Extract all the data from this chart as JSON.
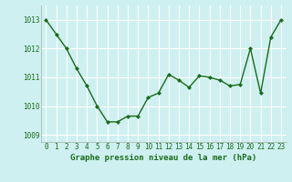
{
  "x": [
    0,
    1,
    2,
    3,
    4,
    5,
    6,
    7,
    8,
    9,
    10,
    11,
    12,
    13,
    14,
    15,
    16,
    17,
    18,
    19,
    20,
    21,
    22,
    23
  ],
  "y": [
    1013.0,
    1012.5,
    1012.0,
    1011.3,
    1010.7,
    1010.0,
    1009.45,
    1009.45,
    1009.65,
    1009.65,
    1010.3,
    1010.45,
    1011.1,
    1010.9,
    1010.65,
    1011.05,
    1011.0,
    1010.9,
    1010.7,
    1010.75,
    1012.0,
    1010.45,
    1012.4,
    1013.0
  ],
  "line_color": "#1a6b1a",
  "marker": "D",
  "marker_size": 2.0,
  "bg_color": "#cef0f0",
  "grid_color": "#ffffff",
  "axis_label_color": "#1a6b1a",
  "tick_label_color": "#1a6b1a",
  "xlabel": "Graphe pression niveau de la mer (hPa)",
  "ylim": [
    1008.75,
    1013.5
  ],
  "yticks": [
    1009,
    1010,
    1011,
    1012,
    1013
  ],
  "xticks": [
    0,
    1,
    2,
    3,
    4,
    5,
    6,
    7,
    8,
    9,
    10,
    11,
    12,
    13,
    14,
    15,
    16,
    17,
    18,
    19,
    20,
    21,
    22,
    23
  ],
  "xlim": [
    -0.5,
    23.5
  ],
  "spine_color": "#aaaaaa",
  "linewidth": 1.0,
  "tick_fontsize": 5.5,
  "xlabel_fontsize": 6.5
}
